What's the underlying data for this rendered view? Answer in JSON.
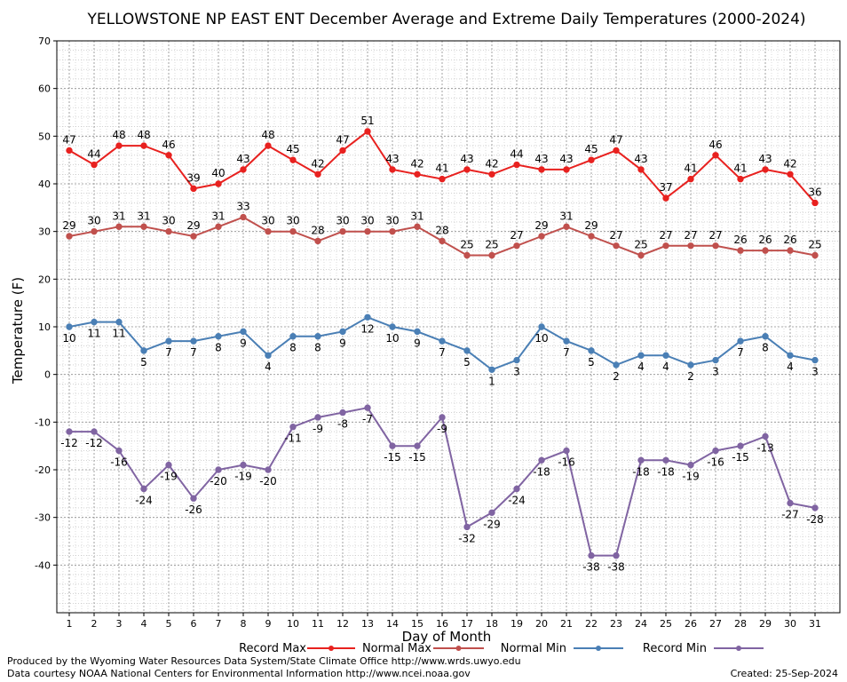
{
  "chart_data": {
    "type": "line",
    "title": "YELLOWSTONE NP EAST ENT December Average and Extreme Daily Temperatures (2000-2024)",
    "xlabel": "Day of Month",
    "ylabel": "Temperature (F)",
    "ylim": [
      -50,
      70
    ],
    "yticks": [
      -40,
      -30,
      -20,
      -10,
      0,
      10,
      20,
      30,
      40,
      50,
      60,
      70
    ],
    "x": [
      1,
      2,
      3,
      4,
      5,
      6,
      7,
      8,
      9,
      10,
      11,
      12,
      13,
      14,
      15,
      16,
      17,
      18,
      19,
      20,
      21,
      22,
      23,
      24,
      25,
      26,
      27,
      28,
      29,
      30,
      31
    ],
    "grid": true,
    "legend_position": "bottom",
    "series": [
      {
        "name": "Record Max",
        "color": "#e8211f",
        "values": [
          47,
          44,
          48,
          48,
          46,
          39,
          40,
          43,
          48,
          45,
          42,
          47,
          51,
          43,
          42,
          41,
          43,
          42,
          44,
          43,
          43,
          45,
          47,
          43,
          37,
          41,
          46,
          41,
          43,
          42,
          36
        ],
        "label_position": "above"
      },
      {
        "name": "Normal Max",
        "color": "#c0504d",
        "values": [
          29,
          30,
          31,
          31,
          30,
          29,
          31,
          33,
          30,
          30,
          28,
          30,
          30,
          30,
          31,
          28,
          25,
          25,
          27,
          29,
          31,
          29,
          27,
          25,
          27,
          27,
          27,
          26,
          26,
          26,
          25
        ],
        "label_position": "above"
      },
      {
        "name": "Normal Min",
        "color": "#4a7fb5",
        "values": [
          10,
          11,
          11,
          5,
          7,
          7,
          8,
          9,
          4,
          8,
          8,
          9,
          12,
          10,
          9,
          7,
          5,
          1,
          3,
          10,
          7,
          5,
          2,
          4,
          4,
          2,
          3,
          7,
          8,
          4,
          3
        ],
        "label_position": "below"
      },
      {
        "name": "Record Min",
        "color": "#8064a2",
        "values": [
          -12,
          -12,
          -16,
          -24,
          -19,
          -26,
          -20,
          -19,
          -20,
          -11,
          -9,
          -8,
          -7,
          -15,
          -15,
          -9,
          -32,
          -29,
          -24,
          -18,
          -16,
          -38,
          -38,
          -18,
          -18,
          -19,
          -16,
          -15,
          -13,
          -27,
          -28
        ],
        "label_position": "below"
      }
    ]
  },
  "footer": {
    "line1": "Produced by the Wyoming Water Resources Data System/State Climate Office http://www.wrds.uwyo.edu",
    "line2": "Data courtesy NOAA National Centers for Environmental Information http://www.ncei.noaa.gov",
    "created": "Created:  25-Sep-2024"
  }
}
